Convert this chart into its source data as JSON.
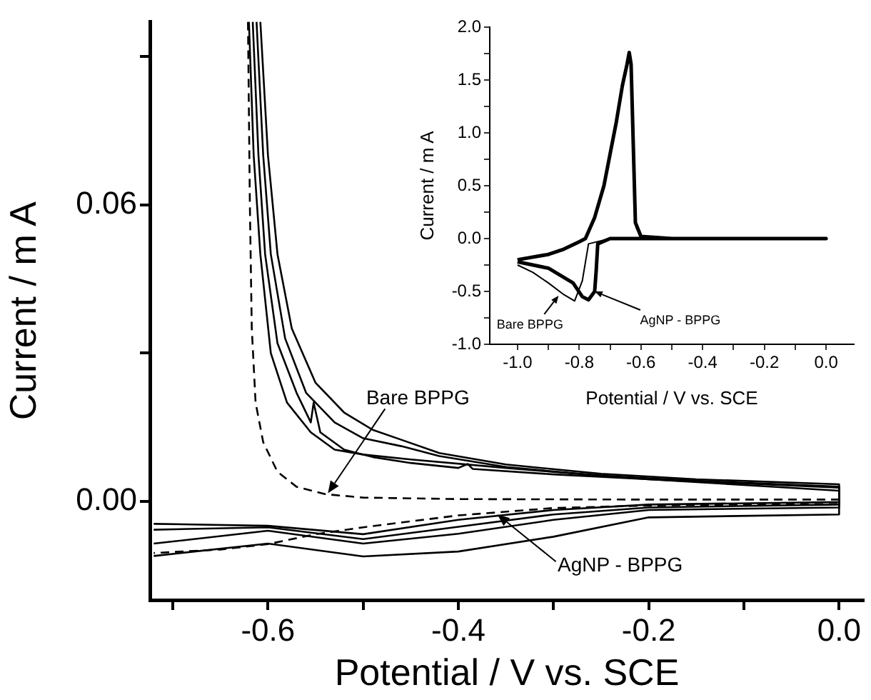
{
  "chart_data": [
    {
      "type": "line",
      "xlabel": "Potential / V vs. SCE",
      "ylabel": "Current / m A",
      "marker": "none",
      "legend": false,
      "xlim": [
        -0.724,
        0.026
      ],
      "ylim": [
        -0.0199,
        0.097
      ],
      "xticks": [
        {
          "value": -0.7,
          "label": null
        },
        -0.6,
        {
          "value": -0.5,
          "label": null
        },
        -0.4,
        {
          "value": -0.3,
          "label": null
        },
        -0.2,
        {
          "value": -0.1,
          "label": null
        },
        {
          "value": 0,
          "label": "0.0"
        }
      ],
      "yticks": [
        {
          "value": 0,
          "label": "0.00"
        },
        {
          "value": 0.03,
          "label": null
        },
        {
          "value": 0.06,
          "label": "0.06"
        },
        {
          "value": 0.09,
          "label": null
        }
      ],
      "annotations": [
        {
          "text": "Bare BPPG",
          "x": -0.537,
          "y": 0.0017
        },
        {
          "text": "AgNP - BPPG",
          "x": -0.359,
          "y": -0.0026
        }
      ],
      "series": [
        {
          "color": "#000000",
          "line_style": "dashed",
          "x": [
            -0.621,
            -0.619,
            -0.617,
            -0.613,
            -0.605,
            -0.59,
            -0.57,
            -0.54,
            -0.5,
            -0.4,
            -0.2,
            0,
            0,
            -0.1,
            -0.2,
            -0.3,
            -0.4,
            -0.45,
            -0.5,
            -0.55,
            -0.6,
            -0.65,
            -0.72
          ],
          "values": [
            0.097,
            0.06,
            0.035,
            0.02,
            0.012,
            0.006,
            0.003,
            0.0015,
            0.0008,
            0.0005,
            0.0004,
            0.0004,
            -0.0005,
            -0.0006,
            -0.0008,
            -0.0013,
            -0.0028,
            -0.004,
            -0.0052,
            -0.0066,
            -0.0086,
            -0.0097,
            -0.0104
          ]
        },
        {
          "color": "#000000",
          "line_style": "solid",
          "x": [
            -0.608,
            -0.6,
            -0.59,
            -0.575,
            -0.55,
            -0.52,
            -0.49,
            -0.46,
            -0.42,
            -0.35,
            -0.25,
            -0.15,
            0,
            0,
            -0.2,
            -0.3,
            -0.4,
            -0.5,
            -0.6,
            -0.72
          ],
          "values": [
            0.097,
            0.07,
            0.05,
            0.035,
            0.024,
            0.018,
            0.0145,
            0.0125,
            0.0098,
            0.0075,
            0.0056,
            0.0045,
            0.0035,
            -0.0001,
            -0.0006,
            -0.0017,
            -0.0037,
            -0.0066,
            -0.0049,
            -0.0045
          ]
        },
        {
          "color": "#000000",
          "line_style": "solid",
          "x": [
            -0.612,
            -0.605,
            -0.597,
            -0.582,
            -0.56,
            -0.53,
            -0.5,
            -0.46,
            -0.42,
            -0.35,
            -0.25,
            -0.15,
            0,
            0,
            -0.2,
            -0.3,
            -0.4,
            -0.5,
            -0.6,
            -0.72
          ],
          "values": [
            0.097,
            0.07,
            0.05,
            0.033,
            0.022,
            0.016,
            0.0128,
            0.0112,
            0.0092,
            0.007,
            0.0052,
            0.0042,
            0.003,
            -0.0006,
            -0.0012,
            -0.0026,
            -0.0051,
            -0.0076,
            -0.0052,
            -0.0057
          ]
        },
        {
          "color": "#000000",
          "line_style": "solid",
          "x": [
            -0.616,
            -0.61,
            -0.603,
            -0.59,
            -0.57,
            -0.555,
            -0.552,
            -0.545,
            -0.52,
            -0.49,
            -0.45,
            -0.4,
            -0.39,
            -0.385,
            -0.3,
            -0.2,
            0,
            0,
            -0.2,
            -0.3,
            -0.4,
            -0.5,
            -0.6,
            -0.72
          ],
          "values": [
            0.097,
            0.07,
            0.05,
            0.032,
            0.022,
            0.016,
            0.02,
            0.014,
            0.0105,
            0.009,
            0.0078,
            0.0068,
            0.0076,
            0.0066,
            0.0055,
            0.0045,
            0.0028,
            -0.0012,
            -0.0017,
            -0.0037,
            -0.0065,
            -0.0085,
            -0.0059,
            -0.0085
          ]
        },
        {
          "color": "#000000",
          "line_style": "solid",
          "x": [
            -0.62,
            -0.615,
            -0.608,
            -0.597,
            -0.58,
            -0.555,
            -0.53,
            -0.5,
            -0.45,
            -0.35,
            -0.3,
            -0.2,
            0,
            0,
            -0.2,
            -0.3,
            -0.4,
            -0.5,
            -0.6,
            -0.72
          ],
          "values": [
            0.097,
            0.07,
            0.05,
            0.03,
            0.02,
            0.014,
            0.0105,
            0.0095,
            0.0085,
            0.0068,
            0.006,
            0.0045,
            0.0022,
            -0.0026,
            -0.0032,
            -0.0071,
            -0.0101,
            -0.0111,
            -0.0085,
            -0.011
          ]
        }
      ]
    },
    {
      "type": "line",
      "xlabel": "Potential / V vs. SCE",
      "ylabel": "Current / m A",
      "marker": "none",
      "legend": false,
      "xlim": [
        -1.09,
        0.09
      ],
      "ylim": [
        -1.0,
        2.0
      ],
      "xticks": [
        {
          "value": -1.0,
          "label": "-1.0"
        },
        {
          "value": -0.9,
          "label": null
        },
        -0.8,
        {
          "value": -0.7,
          "label": null
        },
        -0.6,
        {
          "value": -0.5,
          "label": null
        },
        -0.4,
        {
          "value": -0.3,
          "label": null
        },
        -0.2,
        {
          "value": -0.1,
          "label": null
        },
        {
          "value": 0,
          "label": "0.0"
        }
      ],
      "yticks": [
        {
          "value": -1.0,
          "label": "-1.0"
        },
        {
          "value": -0.75,
          "label": null
        },
        -0.5,
        {
          "value": -0.25,
          "label": null
        },
        {
          "value": 0,
          "label": "0.0"
        },
        {
          "value": 0.25,
          "label": null
        },
        0.5,
        {
          "value": 0.75,
          "label": null
        },
        {
          "value": 1.0,
          "label": "1.0"
        },
        {
          "value": 1.25,
          "label": null
        },
        1.5,
        {
          "value": 1.75,
          "label": null
        },
        {
          "value": 2.0,
          "label": "2.0"
        }
      ],
      "annotations": [
        {
          "text": "Bare BPPG",
          "x": -0.867,
          "y": -0.54
        },
        {
          "text": "AgNP - BPPG",
          "x": -0.75,
          "y": -0.5
        }
      ],
      "series": [
        {
          "color": "#000000",
          "line_style": "solid",
          "x": [
            -1.0,
            -0.9,
            -0.85,
            -0.8,
            -0.78,
            -0.75,
            -0.72,
            -0.7,
            -0.68,
            -0.66,
            -0.645,
            -0.636,
            -0.63,
            -0.624,
            -0.615,
            -0.6,
            -0.5,
            0,
            0,
            -0.5,
            -0.7,
            -0.77,
            -0.79,
            -0.815,
            -0.85,
            -0.9,
            -0.95,
            -1.0
          ],
          "values": [
            -0.2,
            -0.15,
            -0.1,
            -0.03,
            0.0,
            0.2,
            0.5,
            0.8,
            1.1,
            1.45,
            1.65,
            1.74,
            1.6,
            0.8,
            0.1,
            0.02,
            0.0,
            0.0,
            0.0,
            0.0,
            0.0,
            -0.05,
            -0.4,
            -0.59,
            -0.53,
            -0.42,
            -0.32,
            -0.25
          ]
        },
        {
          "color": "#000000",
          "line_style": "solid",
          "x": [
            -1.0,
            -0.9,
            -0.85,
            -0.8,
            -0.78,
            -0.75,
            -0.72,
            -0.7,
            -0.68,
            -0.66,
            -0.645,
            -0.638,
            -0.632,
            -0.625,
            -0.618,
            -0.6,
            -0.5,
            0,
            0,
            -0.5,
            -0.7,
            -0.74,
            -0.745,
            -0.75,
            -0.77,
            -0.79,
            -0.82,
            -0.9,
            -1.0
          ],
          "values": [
            -0.2,
            -0.15,
            -0.1,
            -0.03,
            0.0,
            0.2,
            0.5,
            0.8,
            1.1,
            1.45,
            1.65,
            1.76,
            1.65,
            0.9,
            0.15,
            0.02,
            0.0,
            0.0,
            0.0,
            0.0,
            0.0,
            -0.05,
            -0.3,
            -0.5,
            -0.58,
            -0.55,
            -0.42,
            -0.28,
            -0.22
          ]
        }
      ]
    }
  ]
}
